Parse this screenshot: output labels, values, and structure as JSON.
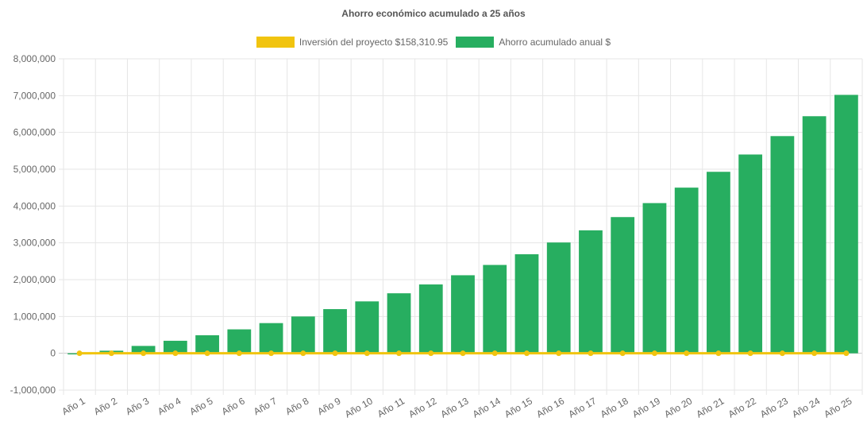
{
  "chart_data": {
    "type": "bar",
    "title": "Ahorro económico acumulado a 25 años",
    "categories": [
      "Año 1",
      "Año 2",
      "Año 3",
      "Año 4",
      "Año 5",
      "Año 6",
      "Año 7",
      "Año 8",
      "Año 9",
      "Año 10",
      "Año 11",
      "Año 12",
      "Año 13",
      "Año 14",
      "Año 15",
      "Año 16",
      "Año 17",
      "Año 18",
      "Año 19",
      "Año 20",
      "Año 21",
      "Año 22",
      "Año 23",
      "Año 24",
      "Año 25"
    ],
    "series": [
      {
        "name": "Inversión del proyecto $158,310.95",
        "type": "line",
        "color": "#f1c40f",
        "values": [
          0,
          0,
          0,
          0,
          0,
          0,
          0,
          0,
          0,
          0,
          0,
          0,
          0,
          0,
          0,
          0,
          0,
          0,
          0,
          0,
          0,
          0,
          0,
          0,
          0
        ]
      },
      {
        "name": "Ahorro acumulado anual $",
        "type": "bar",
        "color": "#27ae60",
        "values": [
          -30000,
          70000,
          200000,
          340000,
          490000,
          650000,
          820000,
          1000000,
          1200000,
          1410000,
          1630000,
          1870000,
          2120000,
          2400000,
          2690000,
          3010000,
          3340000,
          3700000,
          4080000,
          4500000,
          4930000,
          5400000,
          5900000,
          6440000,
          7020000
        ]
      }
    ],
    "yticks": [
      "-1,000,000",
      "0",
      "1,000,000",
      "2,000,000",
      "3,000,000",
      "4,000,000",
      "5,000,000",
      "6,000,000",
      "7,000,000",
      "8,000,000"
    ],
    "ylim": [
      -1000000,
      8000000
    ],
    "grid": true,
    "legend_position": "top"
  }
}
